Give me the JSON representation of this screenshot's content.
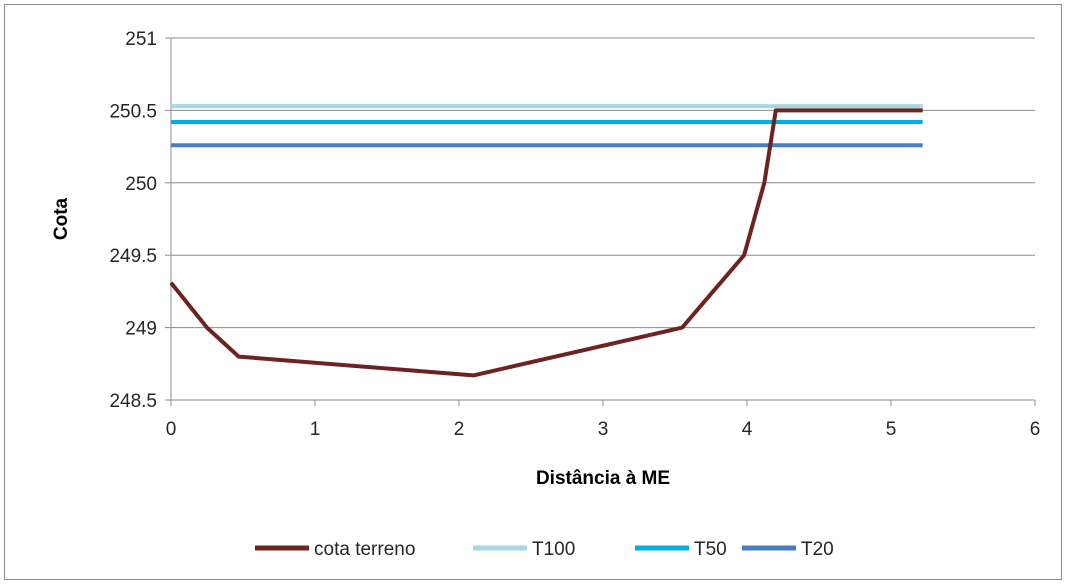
{
  "chart_data": {
    "type": "line",
    "xlabel": "Distância à ME",
    "ylabel": "Cota",
    "xlim": [
      0,
      6
    ],
    "ylim": [
      248.5,
      251
    ],
    "xticks": [
      "0",
      "1",
      "2",
      "3",
      "4",
      "5",
      "6"
    ],
    "yticks": [
      "248.5",
      "249",
      "249.5",
      "250",
      "250.5",
      "251"
    ],
    "grid": "horizontal",
    "legend_position": "bottom",
    "series": [
      {
        "name": "cota terreno",
        "color": "#6b2420",
        "x": [
          0,
          0.25,
          0.47,
          2.1,
          3.55,
          3.98,
          4.12,
          4.2,
          5.22
        ],
        "y": [
          249.31,
          249.0,
          248.8,
          248.67,
          249.0,
          249.5,
          250.0,
          250.5,
          250.5
        ]
      },
      {
        "name": "T100",
        "color": "#a7d8e2",
        "x": [
          0,
          5.22
        ],
        "y": [
          250.53,
          250.53
        ]
      },
      {
        "name": "T50",
        "color": "#00aee8",
        "x": [
          0,
          5.22
        ],
        "y": [
          250.42,
          250.42
        ]
      },
      {
        "name": "T20",
        "color": "#4a7cc0",
        "x": [
          0,
          5.22
        ],
        "y": [
          250.26,
          250.26
        ]
      }
    ]
  }
}
